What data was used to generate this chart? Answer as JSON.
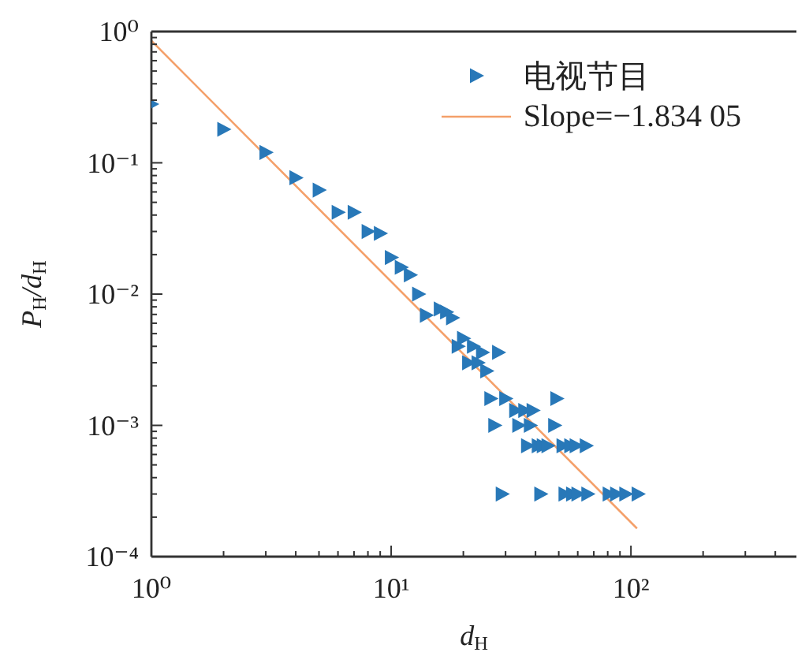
{
  "chart_data": {
    "type": "scatter",
    "xlabel": "d$_{H}$",
    "ylabel": "P$_{H}$/d$_{H}$",
    "log": "xy",
    "marker": "triangle",
    "legend": "top right",
    "xlim": [
      1,
      490
    ],
    "ylim": [
      0.0001,
      1
    ],
    "xticks": [
      {
        "value": 1,
        "label": "10⁰"
      },
      {
        "value": 2,
        "label": null
      },
      {
        "value": 3,
        "label": null
      },
      {
        "value": 4,
        "label": null
      },
      {
        "value": 5,
        "label": null
      },
      {
        "value": 6,
        "label": null
      },
      {
        "value": 7,
        "label": null
      },
      {
        "value": 8,
        "label": null
      },
      {
        "value": 9,
        "label": null
      },
      {
        "value": 10,
        "label": "10¹"
      },
      {
        "value": 20,
        "label": null
      },
      {
        "value": 30,
        "label": null
      },
      {
        "value": 40,
        "label": null
      },
      {
        "value": 50,
        "label": null
      },
      {
        "value": 60,
        "label": null
      },
      {
        "value": 70,
        "label": null
      },
      {
        "value": 80,
        "label": null
      },
      {
        "value": 90,
        "label": null
      },
      {
        "value": 100,
        "label": "10²"
      },
      {
        "value": 200,
        "label": null
      },
      {
        "value": 300,
        "label": null
      },
      {
        "value": 400,
        "label": null
      }
    ],
    "yticks": [
      {
        "value": 0.0001,
        "label": "10⁻⁴"
      },
      {
        "value": 0.0002,
        "label": null
      },
      {
        "value": 0.0003,
        "label": null
      },
      {
        "value": 0.0004,
        "label": null
      },
      {
        "value": 0.0005,
        "label": null
      },
      {
        "value": 0.0006,
        "label": null
      },
      {
        "value": 0.0007,
        "label": null
      },
      {
        "value": 0.0008,
        "label": null
      },
      {
        "value": 0.0009,
        "label": null
      },
      {
        "value": 0.001,
        "label": "10⁻³"
      },
      {
        "value": 0.002,
        "label": null
      },
      {
        "value": 0.003,
        "label": null
      },
      {
        "value": 0.004,
        "label": null
      },
      {
        "value": 0.005,
        "label": null
      },
      {
        "value": 0.006,
        "label": null
      },
      {
        "value": 0.007,
        "label": null
      },
      {
        "value": 0.008,
        "label": null
      },
      {
        "value": 0.009,
        "label": null
      },
      {
        "value": 0.01,
        "label": "10⁻²"
      },
      {
        "value": 0.02,
        "label": null
      },
      {
        "value": 0.03,
        "label": null
      },
      {
        "value": 0.04,
        "label": null
      },
      {
        "value": 0.05,
        "label": null
      },
      {
        "value": 0.06,
        "label": null
      },
      {
        "value": 0.07,
        "label": null
      },
      {
        "value": 0.08,
        "label": null
      },
      {
        "value": 0.09,
        "label": null
      },
      {
        "value": 0.1,
        "label": "10⁻¹"
      },
      {
        "value": 0.2,
        "label": null
      },
      {
        "value": 0.3,
        "label": null
      },
      {
        "value": 0.4,
        "label": null
      },
      {
        "value": 0.5,
        "label": null
      },
      {
        "value": 0.6,
        "label": null
      },
      {
        "value": 0.7,
        "label": null
      },
      {
        "value": 0.8,
        "label": null
      },
      {
        "value": 0.9,
        "label": null
      },
      {
        "value": 1,
        "label": "10⁰"
      }
    ],
    "series": [
      {
        "name": "电视节目",
        "color": "#2878b8",
        "x": [
          1,
          2,
          3,
          4,
          5,
          6,
          7,
          8,
          9,
          10,
          11,
          12,
          13,
          14,
          16,
          17,
          18,
          19,
          20,
          21,
          22,
          23,
          24,
          25,
          26,
          27,
          28,
          29,
          30,
          33,
          34,
          36,
          37,
          38,
          39,
          41,
          42,
          43,
          45,
          48,
          49,
          52,
          53,
          56,
          57,
          59,
          60,
          65,
          66,
          81,
          87,
          95,
          107
        ],
        "values": [
          0.28,
          0.18,
          0.12,
          0.077,
          0.062,
          0.042,
          0.042,
          0.03,
          0.029,
          0.019,
          0.016,
          0.014,
          0.01,
          0.0069,
          0.0077,
          0.0073,
          0.0066,
          0.004,
          0.0046,
          0.003,
          0.004,
          0.003,
          0.0036,
          0.0026,
          0.0016,
          0.001,
          0.0036,
          0.0003,
          0.0016,
          0.0013,
          0.001,
          0.0013,
          0.0007,
          0.001,
          0.0013,
          0.0007,
          0.0003,
          0.0007,
          0.0007,
          0.001,
          0.0016,
          0.0007,
          0.0003,
          0.0007,
          0.0003,
          0.0007,
          0.0003,
          0.0007,
          0.0003,
          0.0003,
          0.0003,
          0.0003,
          0.0003
        ]
      },
      {
        "type": "line",
        "name": "Slope=−1.834 05",
        "color": "#f4a06a",
        "marker": "none",
        "line_style": "solid",
        "x": [
          1,
          106
        ],
        "values": [
          0.85,
          0.000164
        ]
      }
    ]
  }
}
